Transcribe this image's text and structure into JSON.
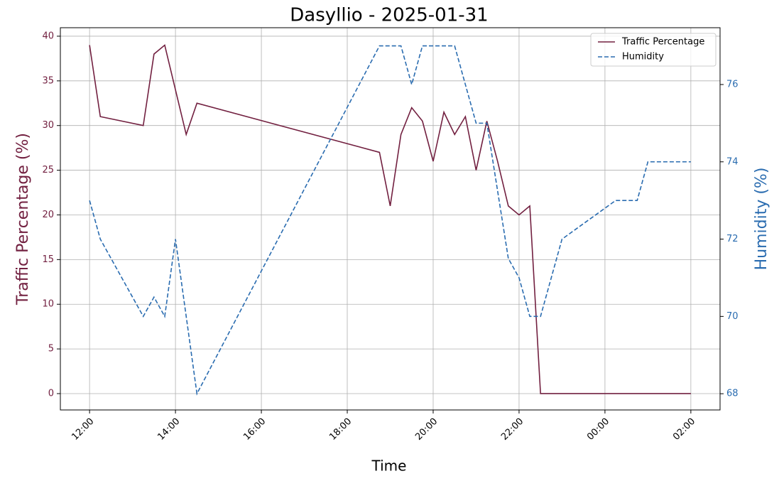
{
  "chart_data": {
    "type": "line",
    "title": "Dasyllio - 2025-01-31",
    "x_label": "Time",
    "y_label": "Traffic Percentage (%)",
    "y2_label": "Humidity (%)",
    "xlim": [
      11.32,
      26.68
    ],
    "xticks": [
      {
        "value": 12,
        "label": "12:00"
      },
      {
        "value": 14,
        "label": "14:00"
      },
      {
        "value": 16,
        "label": "16:00"
      },
      {
        "value": 18,
        "label": "18:00"
      },
      {
        "value": 20,
        "label": "20:00"
      },
      {
        "value": 22,
        "label": "22:00"
      },
      {
        "value": 24,
        "label": "00:00"
      },
      {
        "value": 26,
        "label": "02:00"
      }
    ],
    "ylim": [
      -1.83,
      40.95
    ],
    "yticks": [
      0,
      5,
      10,
      15,
      20,
      25,
      30,
      35,
      40
    ],
    "y2lim": [
      67.58,
      77.47
    ],
    "y2ticks": [
      68,
      70,
      72,
      74,
      76
    ],
    "y_color": "#722040",
    "y2_color": "#2a6cb0",
    "grid": true,
    "legend": "upper right",
    "series": [
      {
        "name": "Traffic Percentage",
        "color": "#722040",
        "dashed": false,
        "x": [
          12,
          12.25,
          13.25,
          13.5,
          13.75,
          14.25,
          14.5,
          18.75,
          19,
          19.25,
          19.5,
          19.75,
          20,
          20.25,
          20.5,
          20.75,
          21,
          21.25,
          21.5,
          21.75,
          22,
          22.25,
          22.5,
          26
        ],
        "values": [
          39,
          31,
          30,
          38,
          39,
          29,
          32.5,
          27,
          21,
          29,
          32,
          30.5,
          26,
          31.5,
          29,
          31,
          25,
          30.5,
          26,
          21,
          20,
          21,
          0,
          0
        ]
      },
      {
        "name": "Humidity",
        "color": "#2a6cb0",
        "dashed": true,
        "axis": "y2",
        "x": [
          12,
          12.25,
          13.25,
          13.5,
          13.75,
          14,
          14.5,
          18.75,
          19.25,
          19.5,
          19.75,
          20.5,
          21,
          21.25,
          21.75,
          22,
          22.25,
          22.5,
          23,
          24.25,
          24.75,
          25,
          26
        ],
        "values": [
          73,
          72,
          70,
          70.5,
          70,
          72,
          68,
          77,
          77,
          76,
          77,
          77,
          75,
          75,
          71.5,
          71,
          70,
          70,
          72,
          73,
          73,
          74,
          74
        ]
      }
    ]
  }
}
